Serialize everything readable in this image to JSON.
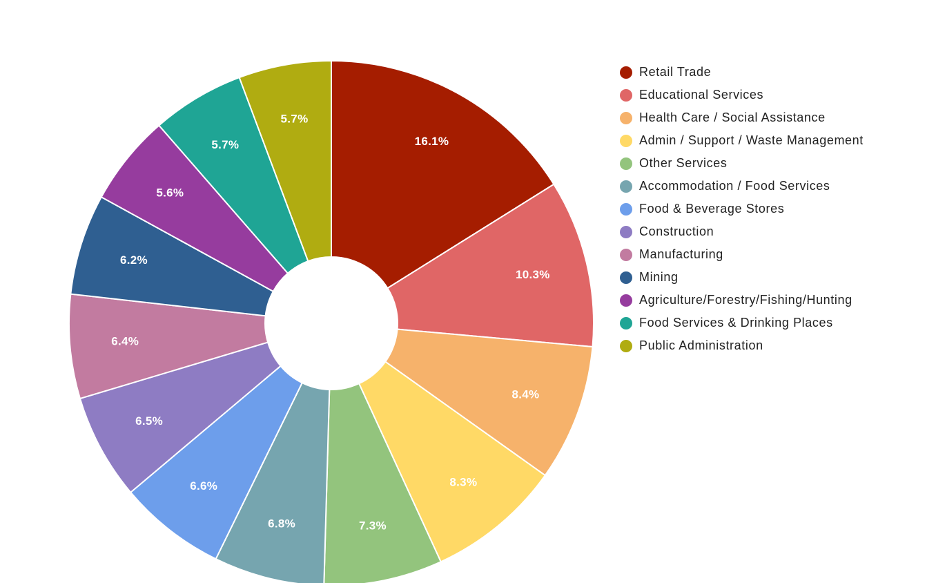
{
  "chart_data": {
    "type": "pie",
    "donut": true,
    "legend_position": "right",
    "title": "",
    "categories": [
      "Retail Trade",
      "Educational Services",
      "Health Care / Social Assistance",
      "Admin / Support / Waste Management",
      "Other Services",
      "Accommodation / Food Services",
      "Food & Beverage Stores",
      "Construction",
      "Manufacturing",
      "Mining",
      "Agriculture/Forestry/Fishing/Hunting",
      "Food Services & Drinking Places",
      "Public Administration"
    ],
    "values": [
      16.1,
      10.3,
      8.4,
      8.3,
      7.3,
      6.8,
      6.6,
      6.5,
      6.4,
      6.2,
      5.6,
      5.7,
      5.7
    ],
    "value_labels": [
      "16.1%",
      "10.3%",
      "8.4%",
      "8.3%",
      "7.3%",
      "6.8%",
      "6.6%",
      "6.5%",
      "6.4%",
      "6.2%",
      "5.6%",
      "5.7%",
      "5.7%"
    ],
    "colors": [
      "#a51d00",
      "#e06666",
      "#f6b26b",
      "#ffd966",
      "#93c47d",
      "#76a5af",
      "#6d9eeb",
      "#8e7cc3",
      "#c27ba0",
      "#2f5f91",
      "#963c9e",
      "#1fa595",
      "#b0ac11"
    ]
  }
}
